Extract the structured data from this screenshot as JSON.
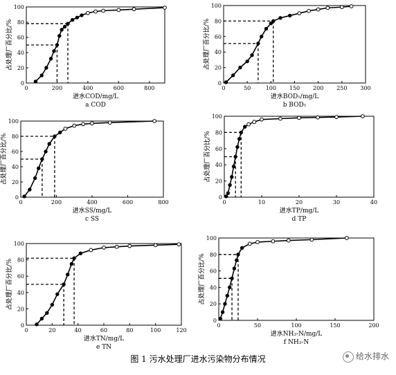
{
  "figure_caption": "图 1 污水处理厂进水污染物分布情况",
  "watermark": "给水排水",
  "chart_data": [
    {
      "id": "a",
      "type": "line",
      "subtitle": "a COD",
      "xlabel": "进水COD/mg/L",
      "ylabel": "占处理厂百分比/%",
      "xlim": [
        0,
        900
      ],
      "ylim": [
        0,
        100
      ],
      "xticks": [
        0,
        200,
        400,
        600,
        800
      ],
      "yticks": [
        0,
        20,
        40,
        60,
        80,
        100
      ],
      "reference_lines": [
        {
          "x": 200,
          "y": 50
        },
        {
          "x": 270,
          "y": 78
        }
      ],
      "x": [
        60,
        100,
        130,
        160,
        180,
        200,
        215,
        230,
        250,
        270,
        300,
        330,
        360,
        400,
        450,
        500,
        600,
        700,
        900
      ],
      "y": [
        2,
        10,
        20,
        32,
        42,
        50,
        62,
        70,
        74,
        78,
        83,
        86,
        89,
        92,
        94,
        95,
        96,
        97,
        99
      ]
    },
    {
      "id": "b",
      "type": "line",
      "subtitle": "b BOD₅",
      "xlabel": "进水BOD₅/mg/L",
      "ylabel": "占处理厂百分比/%",
      "xlim": [
        0,
        300
      ],
      "ylim": [
        0,
        100
      ],
      "xticks": [
        0,
        50,
        100,
        150,
        200,
        250,
        300
      ],
      "yticks": [
        0,
        20,
        40,
        60,
        80,
        100
      ],
      "reference_lines": [
        {
          "x": 73,
          "y": 51
        },
        {
          "x": 105,
          "y": 80
        }
      ],
      "x": [
        5,
        20,
        35,
        50,
        60,
        73,
        80,
        90,
        100,
        105,
        120,
        140,
        160,
        180,
        200,
        220,
        250,
        270
      ],
      "y": [
        1,
        10,
        20,
        28,
        36,
        51,
        60,
        70,
        77,
        80,
        84,
        87,
        90,
        93,
        95,
        97,
        98,
        99
      ]
    },
    {
      "id": "c",
      "type": "line",
      "subtitle": "c SS",
      "xlabel": "进水SS/mg/L",
      "ylabel": "占处理厂百分比/%",
      "xlim": [
        0,
        800
      ],
      "ylim": [
        0,
        100
      ],
      "xticks": [
        0,
        200,
        400,
        600,
        800
      ],
      "yticks": [
        0,
        20,
        40,
        60,
        80,
        100
      ],
      "reference_lines": [
        {
          "x": 120,
          "y": 50
        },
        {
          "x": 190,
          "y": 80
        }
      ],
      "x": [
        20,
        50,
        80,
        100,
        120,
        140,
        160,
        190,
        220,
        250,
        300,
        350,
        400,
        500,
        750
      ],
      "y": [
        1,
        10,
        25,
        38,
        50,
        60,
        70,
        80,
        85,
        90,
        94,
        96,
        97,
        98,
        100
      ]
    },
    {
      "id": "d",
      "type": "line",
      "subtitle": "d TP",
      "xlabel": "进水TP/mg/L",
      "ylabel": "占处理厂百分比/%",
      "xlim": [
        0,
        40
      ],
      "ylim": [
        0,
        100
      ],
      "xticks": [
        0,
        10,
        20,
        30,
        40
      ],
      "yticks": [
        0,
        20,
        40,
        60,
        80,
        100
      ],
      "reference_lines": [
        {
          "x": 3,
          "y": 50
        },
        {
          "x": 4.5,
          "y": 80
        }
      ],
      "x": [
        0.5,
        1,
        1.5,
        2,
        2.5,
        3,
        3.5,
        4,
        4.5,
        5.5,
        6.5,
        8,
        10,
        15,
        20,
        25,
        30,
        37
      ],
      "y": [
        1,
        5,
        15,
        25,
        38,
        50,
        62,
        72,
        80,
        87,
        90,
        93,
        96,
        97,
        98,
        98.5,
        99,
        100
      ]
    },
    {
      "id": "e",
      "type": "line",
      "subtitle": "e TN",
      "xlabel": "进水TN/mg/L",
      "ylabel": "占处理厂百分比/%",
      "xlim": [
        0,
        120
      ],
      "ylim": [
        0,
        100
      ],
      "xticks": [
        0,
        20,
        40,
        60,
        80,
        100,
        120
      ],
      "yticks": [
        0,
        20,
        40,
        60,
        80,
        100
      ],
      "reference_lines": [
        {
          "x": 29,
          "y": 50
        },
        {
          "x": 37,
          "y": 82
        }
      ],
      "x": [
        8,
        12,
        16,
        20,
        24,
        29,
        32,
        35,
        37,
        42,
        50,
        60,
        70,
        80,
        100,
        118
      ],
      "y": [
        1,
        8,
        15,
        25,
        38,
        50,
        62,
        75,
        82,
        88,
        92,
        95,
        96,
        97,
        98,
        99
      ]
    },
    {
      "id": "f",
      "type": "line",
      "subtitle": "f NH₃-N",
      "xlabel": "进水NH₃-N/mg/L",
      "ylabel": "占处理厂百分比/%",
      "xlim": [
        0,
        200
      ],
      "ylim": [
        0,
        100
      ],
      "xticks": [
        0,
        50,
        100,
        150,
        200
      ],
      "yticks": [
        0,
        20,
        40,
        60,
        80,
        100
      ],
      "reference_lines": [
        {
          "x": 17,
          "y": 51
        },
        {
          "x": 25,
          "y": 80
        }
      ],
      "x": [
        2,
        5,
        8,
        11,
        14,
        17,
        20,
        23,
        25,
        30,
        40,
        50,
        70,
        90,
        120,
        165
      ],
      "y": [
        2,
        10,
        20,
        30,
        40,
        51,
        63,
        73,
        80,
        88,
        93,
        95,
        96,
        97,
        98,
        100
      ]
    }
  ]
}
